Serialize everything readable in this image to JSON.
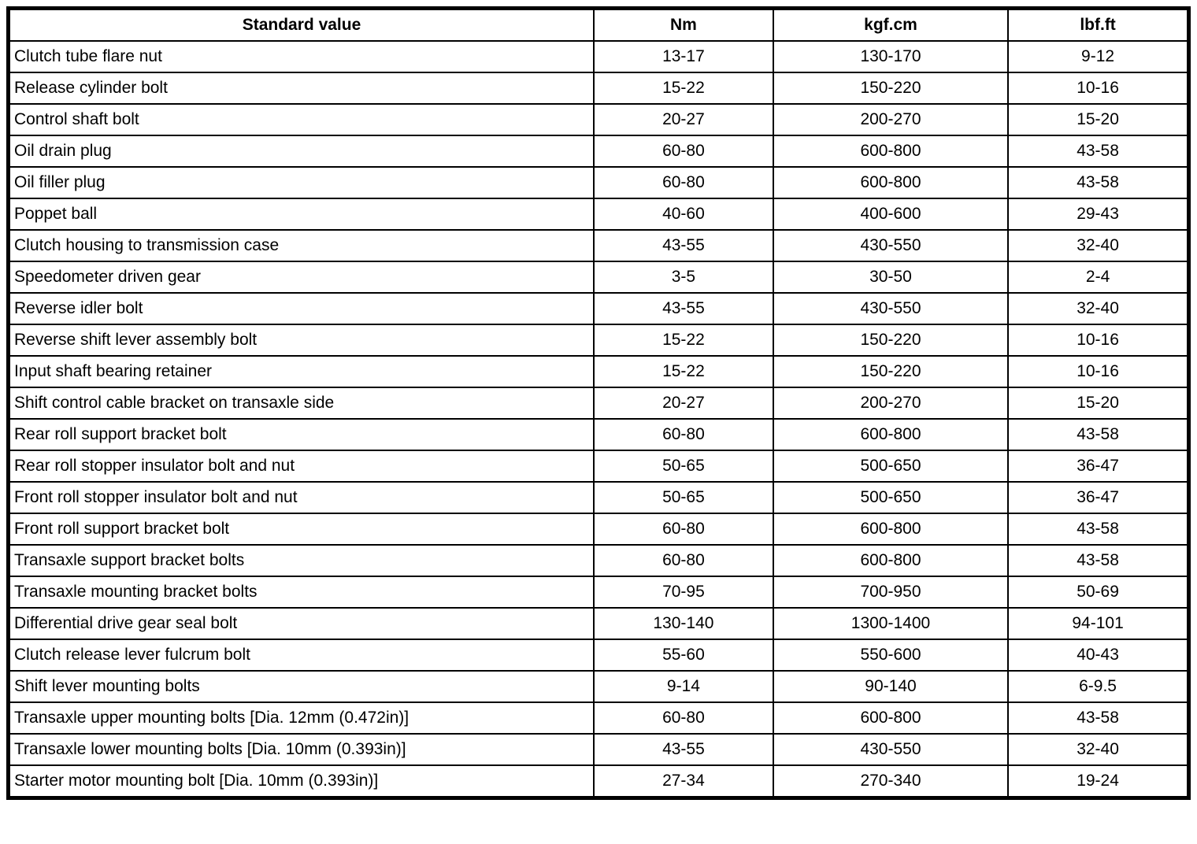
{
  "table": {
    "headers": [
      "Standard value",
      "Nm",
      "kgf.cm",
      "lbf.ft"
    ],
    "rows": [
      [
        "Clutch tube flare nut",
        "13-17",
        "130-170",
        "9-12"
      ],
      [
        "Release cylinder bolt",
        "15-22",
        "150-220",
        "10-16"
      ],
      [
        "Control shaft bolt",
        "20-27",
        "200-270",
        "15-20"
      ],
      [
        "Oil drain plug",
        "60-80",
        "600-800",
        "43-58"
      ],
      [
        "Oil filler plug",
        "60-80",
        "600-800",
        "43-58"
      ],
      [
        "Poppet ball",
        "40-60",
        "400-600",
        "29-43"
      ],
      [
        "Clutch housing to transmission case",
        "43-55",
        "430-550",
        "32-40"
      ],
      [
        "Speedometer driven gear",
        "3-5",
        "30-50",
        "2-4"
      ],
      [
        "Reverse idler bolt",
        "43-55",
        "430-550",
        "32-40"
      ],
      [
        "Reverse shift lever assembly bolt",
        "15-22",
        "150-220",
        "10-16"
      ],
      [
        "Input shaft bearing retainer",
        "15-22",
        "150-220",
        "10-16"
      ],
      [
        "Shift control cable bracket on transaxle side",
        "20-27",
        "200-270",
        "15-20"
      ],
      [
        "Rear roll support bracket bolt",
        "60-80",
        "600-800",
        "43-58"
      ],
      [
        "Rear roll stopper insulator bolt and nut",
        "50-65",
        "500-650",
        "36-47"
      ],
      [
        "Front roll stopper insulator bolt and nut",
        "50-65",
        "500-650",
        "36-47"
      ],
      [
        "Front roll support bracket bolt",
        "60-80",
        "600-800",
        "43-58"
      ],
      [
        "Transaxle support bracket bolts",
        "60-80",
        "600-800",
        "43-58"
      ],
      [
        "Transaxle mounting bracket bolts",
        "70-95",
        "700-950",
        "50-69"
      ],
      [
        "Differential drive gear seal bolt",
        "130-140",
        "1300-1400",
        "94-101"
      ],
      [
        "Clutch release lever fulcrum bolt",
        "55-60",
        "550-600",
        "40-43"
      ],
      [
        "Shift lever mounting bolts",
        "9-14",
        "90-140",
        "6-9.5"
      ],
      [
        "Transaxle upper mounting bolts [Dia. 12mm (0.472in)]",
        "60-80",
        "600-800",
        "43-58"
      ],
      [
        "Transaxle lower mounting bolts [Dia. 10mm (0.393in)]",
        "43-55",
        "430-550",
        "32-40"
      ],
      [
        "Starter motor mounting bolt [Dia. 10mm (0.393in)]",
        "27-34",
        "270-340",
        "19-24"
      ]
    ]
  },
  "colors": {
    "border": "#000000",
    "background": "#ffffff",
    "text": "#000000"
  }
}
